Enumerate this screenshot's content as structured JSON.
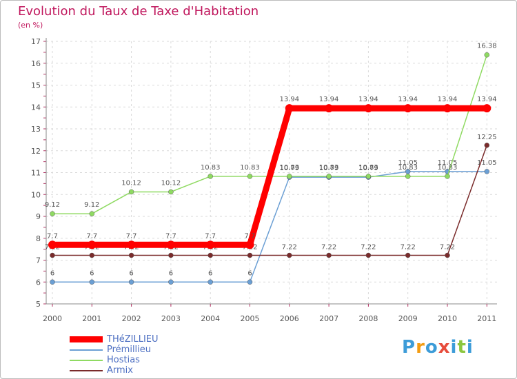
{
  "chart_data": {
    "type": "line",
    "title": "Evolution du Taux de Taxe d'Habitation",
    "subtitle": "(en %)",
    "xlabel": "",
    "ylabel": "",
    "ylim": [
      5,
      17
    ],
    "yticks": [
      "5",
      "6",
      "7",
      "8",
      "9",
      "10",
      "11",
      "12",
      "13",
      "14",
      "15",
      "16",
      "17"
    ],
    "categories": [
      "2000",
      "2001",
      "2002",
      "2003",
      "2004",
      "2005",
      "2006",
      "2007",
      "2008",
      "2009",
      "2010",
      "2011"
    ],
    "series": [
      {
        "name": "THéZILLIEU",
        "color": "#ff0000",
        "values": [
          7.7,
          7.7,
          7.7,
          7.7,
          7.7,
          7.7,
          13.94,
          13.94,
          13.94,
          13.94,
          13.94,
          13.94
        ],
        "labels": [
          "7.7",
          "7.7",
          "7.7",
          "7.7",
          "7.7",
          "7.7",
          "13.94",
          "13.94",
          "13.94",
          "13.94",
          "13.94",
          "13.94"
        ]
      },
      {
        "name": "Prémillieu",
        "color": "#6b9fd4",
        "values": [
          6,
          6,
          6,
          6,
          6,
          6,
          10.79,
          10.79,
          10.79,
          11.05,
          11.05,
          11.05
        ],
        "labels": [
          "6",
          "6",
          "6",
          "6",
          "6",
          "6",
          "10.79",
          "10.79",
          "10.79",
          "11.05",
          "11.05",
          "11.05"
        ]
      },
      {
        "name": "Hostias",
        "color": "#8fda62",
        "values": [
          9.12,
          9.12,
          10.12,
          10.12,
          10.83,
          10.83,
          10.83,
          10.83,
          10.83,
          10.83,
          10.83,
          16.38
        ],
        "labels": [
          "9.12",
          "9.12",
          "10.12",
          "10.12",
          "10.83",
          "10.83",
          "10.83",
          "10.83",
          "10.83",
          "10.83",
          "10.83",
          "16.38"
        ]
      },
      {
        "name": "Armix",
        "color": "#7a2b2b",
        "values": [
          7.22,
          7.22,
          7.22,
          7.22,
          7.22,
          7.22,
          7.22,
          7.22,
          7.22,
          7.22,
          7.22,
          12.25
        ],
        "labels": [
          "7.22",
          "7.22",
          "7.22",
          "7.22",
          "7.22",
          "7.22",
          "7.22",
          "7.22",
          "7.22",
          "7.22",
          "7.22",
          "12.25"
        ]
      }
    ],
    "legend_position": "bottom-left"
  },
  "logo": {
    "letters": [
      "P",
      "r",
      "o",
      "x",
      "i",
      "t",
      "i"
    ],
    "colors": [
      "#3d9cd8",
      "#f39c12",
      "#3d9cd8",
      "#e74c3c",
      "#3d9cd8",
      "#8cc63f",
      "#3d9cd8"
    ]
  }
}
